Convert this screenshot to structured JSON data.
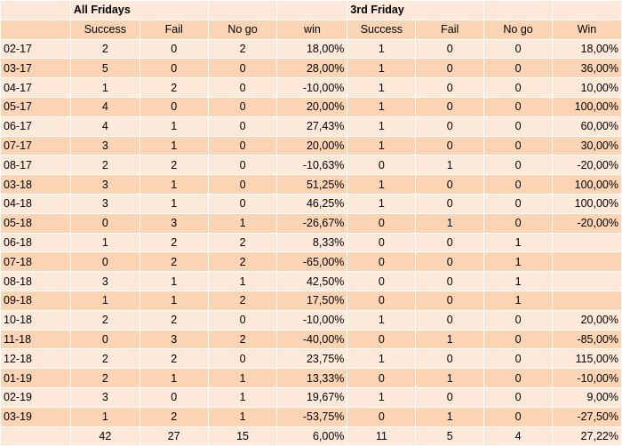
{
  "colors": {
    "row_light": "#fde9d9",
    "row_dark": "#fbd4b4",
    "grid_line": "#ffffff"
  },
  "group_headers": {
    "all_fridays": "All Fridays",
    "third_friday": "3rd Friday"
  },
  "columns": [
    "",
    "Success",
    "Fail",
    "No go",
    "win",
    "Success",
    "Fail",
    "No go",
    "Win"
  ],
  "rows": [
    [
      "02-17",
      "2",
      "0",
      "2",
      "18,00%",
      "1",
      "0",
      "0",
      "18,00%"
    ],
    [
      "03-17",
      "5",
      "0",
      "0",
      "28,00%",
      "1",
      "0",
      "0",
      "36,00%"
    ],
    [
      "04-17",
      "1",
      "2",
      "0",
      "-10,00%",
      "1",
      "0",
      "0",
      "10,00%"
    ],
    [
      "05-17",
      "4",
      "0",
      "0",
      "20,00%",
      "1",
      "0",
      "0",
      "100,00%"
    ],
    [
      "06-17",
      "4",
      "1",
      "0",
      "27,43%",
      "1",
      "0",
      "0",
      "60,00%"
    ],
    [
      "07-17",
      "3",
      "1",
      "0",
      "20,00%",
      "1",
      "0",
      "0",
      "30,00%"
    ],
    [
      "08-17",
      "2",
      "2",
      "0",
      "-10,63%",
      "0",
      "1",
      "0",
      "-20,00%"
    ],
    [
      "03-18",
      "3",
      "1",
      "0",
      "51,25%",
      "1",
      "0",
      "0",
      "100,00%"
    ],
    [
      "04-18",
      "3",
      "1",
      "0",
      "46,25%",
      "1",
      "0",
      "0",
      "100,00%"
    ],
    [
      "05-18",
      "0",
      "3",
      "1",
      "-26,67%",
      "0",
      "1",
      "0",
      "-20,00%"
    ],
    [
      "06-18",
      "1",
      "2",
      "2",
      "8,33%",
      "0",
      "0",
      "1",
      ""
    ],
    [
      "07-18",
      "0",
      "2",
      "2",
      "-65,00%",
      "0",
      "0",
      "1",
      ""
    ],
    [
      "08-18",
      "3",
      "1",
      "1",
      "42,50%",
      "0",
      "0",
      "1",
      ""
    ],
    [
      "09-18",
      "1",
      "1",
      "2",
      "17,50%",
      "0",
      "0",
      "1",
      ""
    ],
    [
      "10-18",
      "2",
      "2",
      "0",
      "-10,00%",
      "1",
      "0",
      "0",
      "20,00%"
    ],
    [
      "11-18",
      "0",
      "3",
      "2",
      "-40,00%",
      "0",
      "1",
      "0",
      "-85,00%"
    ],
    [
      "12-18",
      "2",
      "2",
      "0",
      "23,75%",
      "1",
      "0",
      "0",
      "115,00%"
    ],
    [
      "01-19",
      "2",
      "1",
      "1",
      "13,33%",
      "0",
      "1",
      "0",
      "-10,00%"
    ],
    [
      "02-19",
      "3",
      "0",
      "1",
      "19,67%",
      "1",
      "0",
      "0",
      "9,00%"
    ],
    [
      "03-19",
      "1",
      "2",
      "1",
      "-53,75%",
      "0",
      "1",
      "0",
      "-27,50%"
    ]
  ],
  "totals": [
    "",
    "42",
    "27",
    "15",
    "6,00%",
    "11",
    "5",
    "4",
    "27,22%"
  ]
}
